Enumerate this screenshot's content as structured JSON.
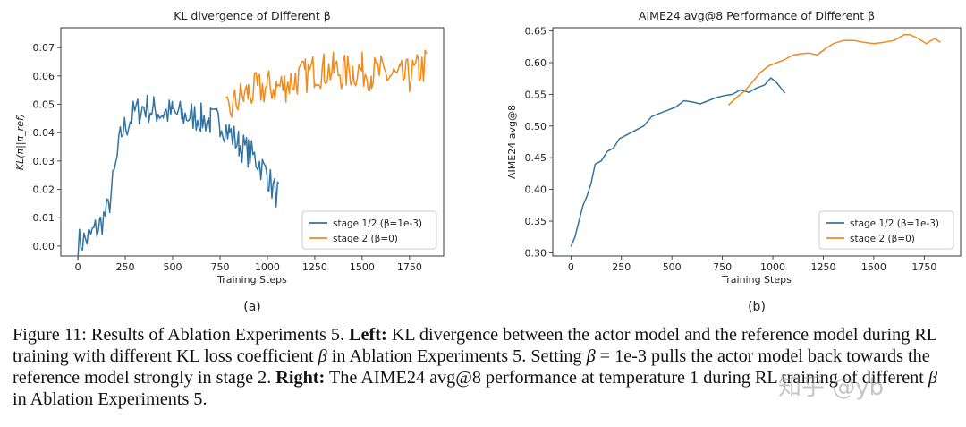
{
  "colors": {
    "blue": "#3274a1",
    "orange": "#f08a1c"
  },
  "chart_data": [
    {
      "type": "line",
      "title": "KL divergence of Different β",
      "xlabel": "Training Steps",
      "ylabel": "KL(π||π_ref)",
      "xlim": [
        -90,
        1930
      ],
      "ylim": [
        -0.0035,
        0.077
      ],
      "xticks": [
        0,
        250,
        500,
        750,
        1000,
        1250,
        1500,
        1750
      ],
      "yticks": [
        0.0,
        0.01,
        0.02,
        0.03,
        0.04,
        0.05,
        0.06,
        0.07
      ],
      "ytick_labels": [
        "0.00",
        "0.01",
        "0.02",
        "0.03",
        "0.04",
        "0.05",
        "0.06",
        "0.07"
      ],
      "legend": {
        "placement": "lower-right"
      },
      "subfig_label": "(a)",
      "series": [
        {
          "name": "stage 1/2 (β=1e-3)",
          "color": "#3274a1",
          "x": [
            0,
            60,
            120,
            160,
            200,
            230,
            260,
            300,
            350,
            400,
            450,
            500,
            550,
            600,
            650,
            700,
            750,
            800,
            850,
            900,
            950,
            1000,
            1030,
            1060
          ],
          "y": [
            0.001,
            0.003,
            0.008,
            0.013,
            0.028,
            0.04,
            0.043,
            0.047,
            0.049,
            0.048,
            0.047,
            0.047,
            0.046,
            0.046,
            0.045,
            0.044,
            0.044,
            0.04,
            0.036,
            0.033,
            0.03,
            0.025,
            0.02,
            0.018
          ]
        },
        {
          "name": "stage 2 (β=0)",
          "color": "#f08a1c",
          "x": [
            780,
            850,
            900,
            950,
            1000,
            1050,
            1100,
            1150,
            1200,
            1250,
            1300,
            1350,
            1400,
            1450,
            1500,
            1550,
            1600,
            1650,
            1700,
            1750,
            1800,
            1840
          ],
          "y": [
            0.046,
            0.052,
            0.054,
            0.055,
            0.056,
            0.056,
            0.057,
            0.059,
            0.06,
            0.062,
            0.062,
            0.062,
            0.061,
            0.062,
            0.062,
            0.061,
            0.061,
            0.06,
            0.059,
            0.06,
            0.062,
            0.064
          ]
        }
      ]
    },
    {
      "type": "line",
      "title": "AIME24 avg@8 Performance of Different β",
      "xlabel": "Training Steps",
      "ylabel": "AIME24 avg@8",
      "xlim": [
        -90,
        1930
      ],
      "ylim": [
        0.295,
        0.655
      ],
      "xticks": [
        0,
        250,
        500,
        750,
        1000,
        1250,
        1500,
        1750
      ],
      "yticks": [
        0.3,
        0.35,
        0.4,
        0.45,
        0.5,
        0.55,
        0.6,
        0.65
      ],
      "ytick_labels": [
        "0.30",
        "0.35",
        "0.40",
        "0.45",
        "0.50",
        "0.55",
        "0.60",
        "0.65"
      ],
      "legend": {
        "placement": "lower-right"
      },
      "subfig_label": "(b)",
      "series": [
        {
          "name": "stage 1/2 (β=1e-3)",
          "color": "#3274a1",
          "x": [
            0,
            20,
            40,
            60,
            80,
            100,
            120,
            150,
            180,
            210,
            240,
            270,
            300,
            330,
            360,
            400,
            440,
            480,
            520,
            560,
            600,
            640,
            680,
            720,
            760,
            800,
            840,
            880,
            920,
            960,
            990,
            1020,
            1040,
            1060
          ],
          "y": [
            0.31,
            0.325,
            0.35,
            0.375,
            0.39,
            0.41,
            0.44,
            0.445,
            0.46,
            0.465,
            0.48,
            0.485,
            0.49,
            0.495,
            0.5,
            0.515,
            0.52,
            0.525,
            0.53,
            0.54,
            0.538,
            0.535,
            0.54,
            0.545,
            0.548,
            0.55,
            0.557,
            0.553,
            0.56,
            0.565,
            0.576,
            0.568,
            0.56,
            0.552
          ]
        },
        {
          "name": "stage 2 (β=0)",
          "color": "#f08a1c",
          "x": [
            780,
            820,
            860,
            900,
            940,
            980,
            1020,
            1060,
            1100,
            1140,
            1180,
            1220,
            1260,
            1300,
            1350,
            1400,
            1450,
            1500,
            1550,
            1600,
            1650,
            1680,
            1720,
            1760,
            1800,
            1830
          ],
          "y": [
            0.533,
            0.545,
            0.555,
            0.57,
            0.585,
            0.595,
            0.6,
            0.605,
            0.612,
            0.614,
            0.615,
            0.612,
            0.622,
            0.63,
            0.635,
            0.635,
            0.632,
            0.63,
            0.632,
            0.635,
            0.644,
            0.644,
            0.638,
            0.63,
            0.638,
            0.632
          ]
        }
      ]
    }
  ],
  "caption": {
    "figure_label": "Figure 11:",
    "intro": "Results of Ablation Experiments 5.",
    "left_label": "Left:",
    "left_text_1": "KL divergence between the actor model and the reference model during RL training with different KL loss coefficient",
    "beta": "β",
    "left_text_2": "in Ablation Experiments 5. Setting",
    "beta_eq": "β",
    "eq_text": "= 1e-3 pulls the actor model back towards the reference model strongly in stage 2.",
    "right_label": "Right:",
    "right_text_1": "The AIME24 avg@8 performance at temperature 1 during RL training of different",
    "beta2": "β",
    "right_text_2": "in Ablation Experiments 5."
  },
  "watermark": "知乎 @yb"
}
